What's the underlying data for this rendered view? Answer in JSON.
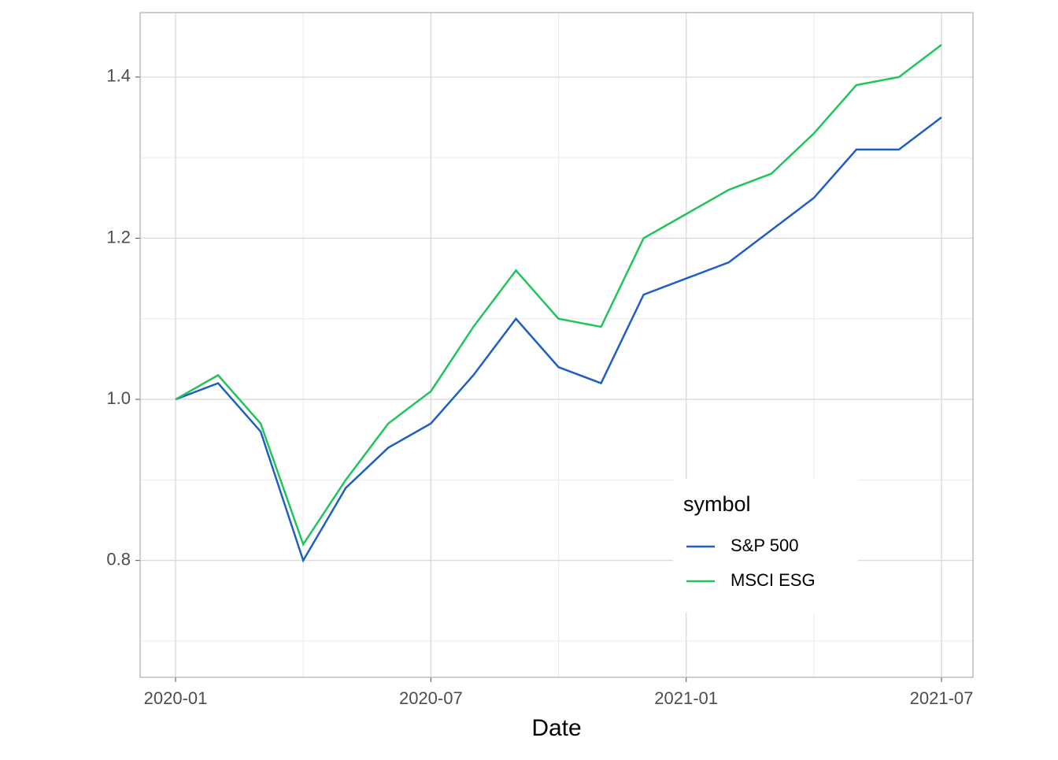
{
  "chart_data": {
    "type": "line",
    "xlabel": "Date",
    "x": [
      "2020-01",
      "2020-02",
      "2020-03",
      "2020-04",
      "2020-05",
      "2020-06",
      "2020-07",
      "2020-08",
      "2020-09",
      "2020-10",
      "2020-11",
      "2020-12",
      "2021-01",
      "2021-02",
      "2021-03",
      "2021-04",
      "2021-05",
      "2021-06",
      "2021-07"
    ],
    "xticks": [
      "2020-01",
      "2020-07",
      "2021-01",
      "2021-07"
    ],
    "series": [
      {
        "name": "S&P 500",
        "color": "#1f5fc4",
        "values": [
          1.0,
          1.02,
          0.96,
          0.8,
          0.89,
          0.94,
          0.97,
          1.03,
          1.1,
          1.04,
          1.02,
          1.13,
          1.15,
          1.17,
          1.21,
          1.25,
          1.31,
          1.31,
          1.35
        ]
      },
      {
        "name": "MSCI ESG",
        "color": "#22c45a",
        "values": [
          1.0,
          1.03,
          0.97,
          0.82,
          0.9,
          0.97,
          1.01,
          1.09,
          1.16,
          1.1,
          1.09,
          1.2,
          1.23,
          1.26,
          1.28,
          1.33,
          1.39,
          1.4,
          1.44
        ]
      }
    ],
    "ylim": [
      0.655,
      1.48
    ],
    "yticks": [
      0.8,
      {
        "value": 1,
        "label": "1.0"
      },
      1.2,
      1.4
    ],
    "yminor": [
      0.7,
      0.9,
      1.1,
      1.3
    ],
    "grid": true,
    "legend_title": "symbol",
    "legend": "lower right"
  }
}
